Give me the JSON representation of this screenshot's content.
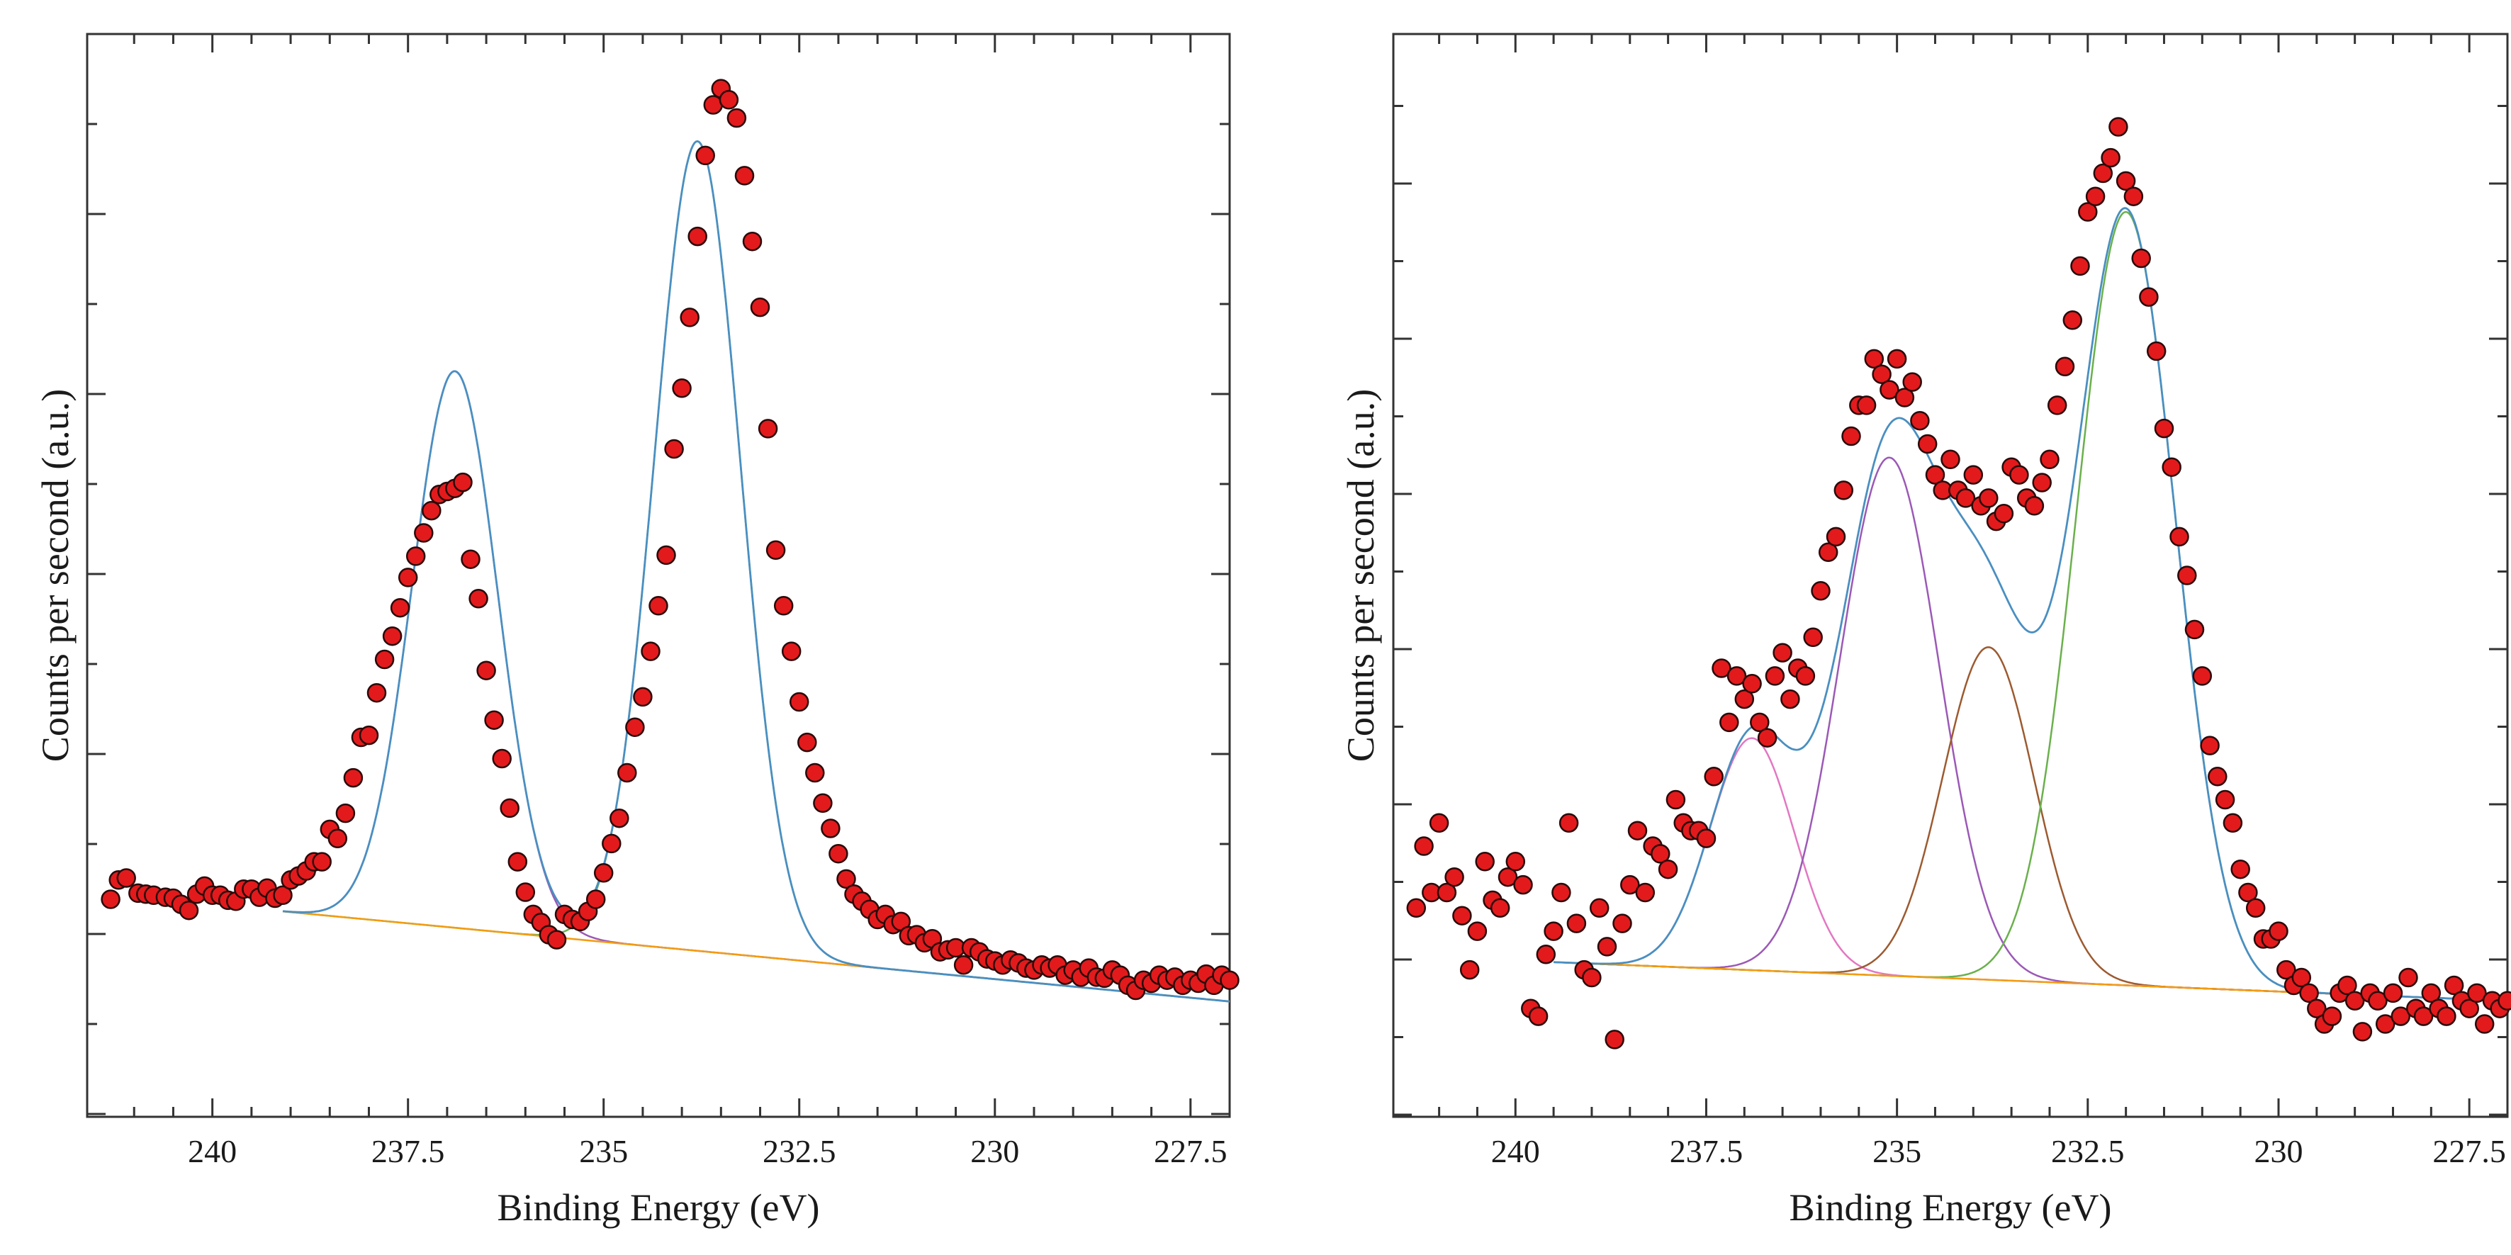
{
  "chart_data": [
    {
      "type": "scatter",
      "xlabel": "Binding Energy (eV)",
      "ylabel": "Counts per second (a.u.)",
      "xlim": [
        241.6,
        227.0
      ],
      "ylim": [
        -0.02,
        1.05
      ],
      "x_ticks": [
        "240",
        "237.5",
        "235",
        "232.5",
        "230",
        "227.5"
      ],
      "x_tick_values": [
        240,
        237.5,
        235,
        232.5,
        230,
        227.5
      ],
      "y_tick_labels": "none",
      "baseline": {
        "start": [
          239.1,
          0.183
        ],
        "end": [
          227.0,
          0.094
        ]
      },
      "peaks": [
        {
          "center": 236.9,
          "height": 0.55,
          "sigma": 0.55,
          "color": "#9b59b6"
        },
        {
          "center": 233.8,
          "height": 0.8,
          "sigma": 0.55,
          "color": "#6ab04c"
        }
      ],
      "envelope_color": "#4a8fc1",
      "points": [
        [
          241.3,
          0.195
        ],
        [
          241.2,
          0.214
        ],
        [
          241.1,
          0.216
        ],
        [
          240.95,
          0.201
        ],
        [
          240.85,
          0.2
        ],
        [
          240.75,
          0.199
        ],
        [
          240.6,
          0.197
        ],
        [
          240.5,
          0.196
        ],
        [
          240.4,
          0.19
        ],
        [
          240.3,
          0.184
        ],
        [
          240.2,
          0.2
        ],
        [
          240.1,
          0.208
        ],
        [
          240.0,
          0.199
        ],
        [
          239.9,
          0.199
        ],
        [
          239.8,
          0.194
        ],
        [
          239.7,
          0.193
        ],
        [
          239.6,
          0.205
        ],
        [
          239.5,
          0.205
        ],
        [
          239.4,
          0.197
        ],
        [
          239.3,
          0.206
        ],
        [
          239.2,
          0.196
        ],
        [
          239.1,
          0.199
        ],
        [
          239.0,
          0.214
        ],
        [
          238.9,
          0.218
        ],
        [
          238.8,
          0.223
        ],
        [
          238.7,
          0.232
        ],
        [
          238.6,
          0.232
        ],
        [
          238.5,
          0.264
        ],
        [
          238.4,
          0.255
        ],
        [
          238.3,
          0.28
        ],
        [
          238.2,
          0.315
        ],
        [
          238.1,
          0.355
        ],
        [
          238.0,
          0.357
        ],
        [
          237.9,
          0.399
        ],
        [
          237.8,
          0.432
        ],
        [
          237.7,
          0.455
        ],
        [
          237.6,
          0.483
        ],
        [
          237.5,
          0.513
        ],
        [
          237.4,
          0.534
        ],
        [
          237.3,
          0.557
        ],
        [
          237.2,
          0.579
        ],
        [
          237.1,
          0.595
        ],
        [
          237.0,
          0.598
        ],
        [
          236.9,
          0.601
        ],
        [
          236.8,
          0.607
        ],
        [
          236.7,
          0.531
        ],
        [
          236.6,
          0.492
        ],
        [
          236.5,
          0.421
        ],
        [
          236.4,
          0.372
        ],
        [
          236.3,
          0.334
        ],
        [
          236.2,
          0.285
        ],
        [
          236.1,
          0.232
        ],
        [
          236.0,
          0.202
        ],
        [
          235.9,
          0.18
        ],
        [
          235.8,
          0.172
        ],
        [
          235.7,
          0.16
        ],
        [
          235.6,
          0.155
        ],
        [
          235.5,
          0.18
        ],
        [
          235.4,
          0.175
        ],
        [
          235.3,
          0.173
        ],
        [
          235.2,
          0.183
        ],
        [
          235.1,
          0.195
        ],
        [
          235.0,
          0.221
        ],
        [
          234.9,
          0.25
        ],
        [
          234.8,
          0.275
        ],
        [
          234.7,
          0.32
        ],
        [
          234.6,
          0.365
        ],
        [
          234.5,
          0.395
        ],
        [
          234.4,
          0.44
        ],
        [
          234.3,
          0.485
        ],
        [
          234.2,
          0.535
        ],
        [
          234.1,
          0.64
        ],
        [
          234.0,
          0.7
        ],
        [
          233.9,
          0.77
        ],
        [
          233.8,
          0.85
        ],
        [
          233.7,
          0.93
        ],
        [
          233.6,
          0.98
        ],
        [
          233.5,
          0.996
        ],
        [
          233.4,
          0.985
        ],
        [
          233.3,
          0.967
        ],
        [
          233.2,
          0.91
        ],
        [
          233.1,
          0.845
        ],
        [
          233.0,
          0.78
        ],
        [
          232.9,
          0.66
        ],
        [
          232.8,
          0.54
        ],
        [
          232.7,
          0.485
        ],
        [
          232.6,
          0.44
        ],
        [
          232.5,
          0.39
        ],
        [
          232.4,
          0.35
        ],
        [
          232.3,
          0.32
        ],
        [
          232.2,
          0.29
        ],
        [
          232.1,
          0.265
        ],
        [
          232.0,
          0.24
        ],
        [
          231.9,
          0.215
        ],
        [
          231.8,
          0.2
        ],
        [
          231.7,
          0.193
        ],
        [
          231.6,
          0.185
        ],
        [
          231.5,
          0.175
        ],
        [
          231.4,
          0.18
        ],
        [
          231.3,
          0.17
        ],
        [
          231.2,
          0.173
        ],
        [
          231.1,
          0.159
        ],
        [
          231.0,
          0.16
        ],
        [
          230.9,
          0.152
        ],
        [
          230.8,
          0.156
        ],
        [
          230.7,
          0.143
        ],
        [
          230.6,
          0.145
        ],
        [
          230.5,
          0.147
        ],
        [
          230.4,
          0.13
        ],
        [
          230.3,
          0.147
        ],
        [
          230.2,
          0.143
        ],
        [
          230.1,
          0.136
        ],
        [
          230.0,
          0.134
        ],
        [
          229.9,
          0.13
        ],
        [
          229.8,
          0.135
        ],
        [
          229.7,
          0.132
        ],
        [
          229.6,
          0.127
        ],
        [
          229.5,
          0.125
        ],
        [
          229.4,
          0.13
        ],
        [
          229.3,
          0.127
        ],
        [
          229.2,
          0.13
        ],
        [
          229.1,
          0.12
        ],
        [
          229.0,
          0.125
        ],
        [
          228.9,
          0.118
        ],
        [
          228.8,
          0.127
        ],
        [
          228.7,
          0.118
        ],
        [
          228.6,
          0.117
        ],
        [
          228.5,
          0.125
        ],
        [
          228.4,
          0.12
        ],
        [
          228.3,
          0.11
        ],
        [
          228.2,
          0.105
        ],
        [
          228.1,
          0.115
        ],
        [
          228.0,
          0.112
        ],
        [
          227.9,
          0.12
        ],
        [
          227.8,
          0.115
        ],
        [
          227.7,
          0.118
        ],
        [
          227.6,
          0.11
        ],
        [
          227.5,
          0.115
        ],
        [
          227.4,
          0.112
        ],
        [
          227.3,
          0.121
        ],
        [
          227.2,
          0.11
        ],
        [
          227.1,
          0.12
        ],
        [
          227.0,
          0.115
        ]
      ]
    },
    {
      "type": "scatter",
      "xlabel": "Binding Energy (eV)",
      "ylabel": "Counts per second (a.u.)",
      "xlim": [
        241.6,
        227.0
      ],
      "ylim": [
        -0.1,
        1.3
      ],
      "x_ticks": [
        "240",
        "237.5",
        "235",
        "232.5",
        "230",
        "227.5"
      ],
      "x_tick_values": [
        240,
        237.5,
        235,
        232.5,
        230,
        227.5
      ],
      "y_tick_labels": "none",
      "baseline": {
        "start": [
          239.5,
          0.1
        ],
        "end": [
          227.0,
          0.05
        ]
      },
      "peaks": [
        {
          "center": 236.9,
          "height": 0.3,
          "sigma": 0.55,
          "color": "#e377c2"
        },
        {
          "center": 235.1,
          "height": 0.67,
          "sigma": 0.65,
          "color": "#9b59b6"
        },
        {
          "center": 233.8,
          "height": 0.43,
          "sigma": 0.6,
          "color": "#9c5a30"
        },
        {
          "center": 232.0,
          "height": 1.0,
          "sigma": 0.65,
          "color": "#6ab04c"
        }
      ],
      "envelope_color": "#4a8fc1",
      "points": [
        [
          241.3,
          0.17
        ],
        [
          241.2,
          0.25
        ],
        [
          241.1,
          0.19
        ],
        [
          241.0,
          0.28
        ],
        [
          240.9,
          0.19
        ],
        [
          240.8,
          0.21
        ],
        [
          240.7,
          0.16
        ],
        [
          240.6,
          0.09
        ],
        [
          240.5,
          0.14
        ],
        [
          240.4,
          0.23
        ],
        [
          240.3,
          0.18
        ],
        [
          240.2,
          0.17
        ],
        [
          240.1,
          0.21
        ],
        [
          240.0,
          0.23
        ],
        [
          239.9,
          0.2
        ],
        [
          239.8,
          0.04
        ],
        [
          239.7,
          0.03
        ],
        [
          239.6,
          0.11
        ],
        [
          239.5,
          0.14
        ],
        [
          239.4,
          0.19
        ],
        [
          239.3,
          0.28
        ],
        [
          239.2,
          0.15
        ],
        [
          239.1,
          0.09
        ],
        [
          239.0,
          0.08
        ],
        [
          238.9,
          0.17
        ],
        [
          238.8,
          0.12
        ],
        [
          238.7,
          0.0
        ],
        [
          238.6,
          0.15
        ],
        [
          238.5,
          0.2
        ],
        [
          238.4,
          0.27
        ],
        [
          238.3,
          0.19
        ],
        [
          238.2,
          0.25
        ],
        [
          238.1,
          0.24
        ],
        [
          238.0,
          0.22
        ],
        [
          237.9,
          0.31
        ],
        [
          237.8,
          0.28
        ],
        [
          237.7,
          0.27
        ],
        [
          237.6,
          0.27
        ],
        [
          237.5,
          0.26
        ],
        [
          237.4,
          0.34
        ],
        [
          237.3,
          0.48
        ],
        [
          237.2,
          0.41
        ],
        [
          237.1,
          0.47
        ],
        [
          237.0,
          0.44
        ],
        [
          236.9,
          0.46
        ],
        [
          236.8,
          0.41
        ],
        [
          236.7,
          0.39
        ],
        [
          236.6,
          0.47
        ],
        [
          236.5,
          0.5
        ],
        [
          236.4,
          0.44
        ],
        [
          236.3,
          0.48
        ],
        [
          236.2,
          0.47
        ],
        [
          236.1,
          0.52
        ],
        [
          236.0,
          0.58
        ],
        [
          235.9,
          0.63
        ],
        [
          235.8,
          0.65
        ],
        [
          235.7,
          0.71
        ],
        [
          235.6,
          0.78
        ],
        [
          235.5,
          0.82
        ],
        [
          235.4,
          0.82
        ],
        [
          235.3,
          0.88
        ],
        [
          235.2,
          0.86
        ],
        [
          235.1,
          0.84
        ],
        [
          235.0,
          0.88
        ],
        [
          234.9,
          0.83
        ],
        [
          234.8,
          0.85
        ],
        [
          234.7,
          0.8
        ],
        [
          234.6,
          0.77
        ],
        [
          234.5,
          0.73
        ],
        [
          234.4,
          0.71
        ],
        [
          234.3,
          0.75
        ],
        [
          234.2,
          0.71
        ],
        [
          234.1,
          0.7
        ],
        [
          234.0,
          0.73
        ],
        [
          233.9,
          0.69
        ],
        [
          233.8,
          0.7
        ],
        [
          233.7,
          0.67
        ],
        [
          233.6,
          0.68
        ],
        [
          233.5,
          0.74
        ],
        [
          233.4,
          0.73
        ],
        [
          233.3,
          0.7
        ],
        [
          233.2,
          0.69
        ],
        [
          233.1,
          0.72
        ],
        [
          233.0,
          0.75
        ],
        [
          232.9,
          0.82
        ],
        [
          232.8,
          0.87
        ],
        [
          232.7,
          0.93
        ],
        [
          232.6,
          1.0
        ],
        [
          232.5,
          1.07
        ],
        [
          232.4,
          1.09
        ],
        [
          232.3,
          1.12
        ],
        [
          232.2,
          1.14
        ],
        [
          232.1,
          1.18
        ],
        [
          232.0,
          1.11
        ],
        [
          231.9,
          1.09
        ],
        [
          231.8,
          1.01
        ],
        [
          231.7,
          0.96
        ],
        [
          231.6,
          0.89
        ],
        [
          231.5,
          0.79
        ],
        [
          231.4,
          0.74
        ],
        [
          231.3,
          0.65
        ],
        [
          231.2,
          0.6
        ],
        [
          231.1,
          0.53
        ],
        [
          231.0,
          0.47
        ],
        [
          230.9,
          0.38
        ],
        [
          230.8,
          0.34
        ],
        [
          230.7,
          0.31
        ],
        [
          230.6,
          0.28
        ],
        [
          230.5,
          0.22
        ],
        [
          230.4,
          0.19
        ],
        [
          230.3,
          0.17
        ],
        [
          230.2,
          0.13
        ],
        [
          230.1,
          0.13
        ],
        [
          230.0,
          0.14
        ],
        [
          229.9,
          0.09
        ],
        [
          229.8,
          0.07
        ],
        [
          229.7,
          0.08
        ],
        [
          229.6,
          0.06
        ],
        [
          229.5,
          0.04
        ],
        [
          229.4,
          0.02
        ],
        [
          229.3,
          0.03
        ],
        [
          229.2,
          0.06
        ],
        [
          229.1,
          0.07
        ],
        [
          229.0,
          0.05
        ],
        [
          228.9,
          0.01
        ],
        [
          228.8,
          0.06
        ],
        [
          228.7,
          0.05
        ],
        [
          228.6,
          0.02
        ],
        [
          228.5,
          0.06
        ],
        [
          228.4,
          0.03
        ],
        [
          228.3,
          0.08
        ],
        [
          228.2,
          0.04
        ],
        [
          228.1,
          0.03
        ],
        [
          228.0,
          0.06
        ],
        [
          227.9,
          0.04
        ],
        [
          227.8,
          0.03
        ],
        [
          227.7,
          0.07
        ],
        [
          227.6,
          0.05
        ],
        [
          227.5,
          0.04
        ],
        [
          227.4,
          0.06
        ],
        [
          227.3,
          0.02
        ],
        [
          227.2,
          0.05
        ],
        [
          227.1,
          0.04
        ],
        [
          227.0,
          0.05
        ]
      ]
    }
  ]
}
